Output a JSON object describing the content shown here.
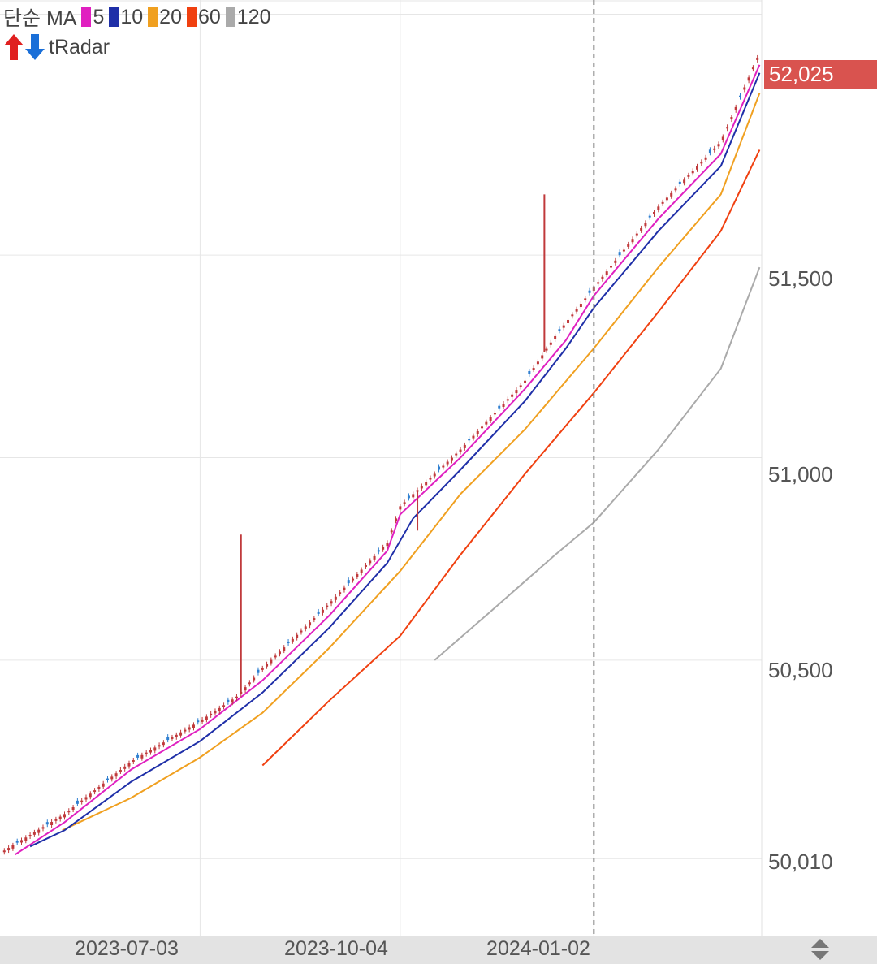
{
  "legend": {
    "label": "단순 MA",
    "items": [
      {
        "period": "5",
        "color": "#e020c0"
      },
      {
        "period": "10",
        "color": "#1f2fa8"
      },
      {
        "period": "20",
        "color": "#f0a020"
      },
      {
        "period": "60",
        "color": "#f04010"
      },
      {
        "period": "120",
        "color": "#aaaaaa"
      }
    ]
  },
  "indicator": {
    "label": "tRadar",
    "up_icon": "red-up-arrow-icon",
    "down_icon": "blue-down-arrow-icon"
  },
  "price_tag": "52,025",
  "y_tick_labels": [
    "51,500",
    "51,000",
    "50,500",
    "50,010"
  ],
  "x_tick_labels": [
    "2023-07-03",
    "2023-10-04",
    "2024-01-02"
  ],
  "colors": {
    "up_candle": "#c0393b",
    "down_candle": "#2f7fd0",
    "price_tag_bg": "#d9534f",
    "grid": "#e6e6e6",
    "crosshair": "#888888"
  },
  "chart_data": {
    "type": "line",
    "x_range": [
      "2023-04-01",
      "2024-03-20"
    ],
    "ylim": [
      49820,
      52130
    ],
    "y_ticks": [
      50010,
      50500,
      51000,
      51500
    ],
    "x_ticks": [
      "2023-07-03",
      "2023-10-04",
      "2024-01-02"
    ],
    "crosshair_date": "2024-01-02",
    "last_price": 52025,
    "candles": {
      "x": [
        "2023-04-03",
        "2023-05-01",
        "2023-06-01",
        "2023-07-03",
        "2023-07-20",
        "2023-08-01",
        "2023-09-01",
        "2023-09-28",
        "2023-10-04",
        "2023-11-01",
        "2023-12-01",
        "2023-12-15",
        "2024-01-02",
        "2024-02-01",
        "2024-03-01",
        "2024-03-19"
      ],
      "close": [
        50030,
        50120,
        50250,
        50350,
        50410,
        50480,
        50640,
        50790,
        50880,
        51020,
        51190,
        51300,
        51420,
        51620,
        51780,
        52000
      ]
    },
    "spikes": [
      {
        "x": "2023-07-22",
        "high": 50810
      },
      {
        "x": "2023-10-12",
        "high": 50820
      },
      {
        "x": "2023-12-10",
        "high": 51650
      }
    ],
    "series": [
      {
        "name": "5",
        "color": "#e020c0",
        "x": [
          "2023-04-08",
          "2023-05-01",
          "2023-06-01",
          "2023-07-03",
          "2023-08-01",
          "2023-09-01",
          "2023-09-28",
          "2023-10-04",
          "2023-11-01",
          "2023-12-01",
          "2023-12-20",
          "2024-01-02",
          "2024-02-01",
          "2024-03-01",
          "2024-03-19"
        ],
        "y": [
          50020,
          50100,
          50230,
          50330,
          50450,
          50610,
          50770,
          50860,
          51000,
          51170,
          51290,
          51400,
          51590,
          51750,
          51970
        ]
      },
      {
        "name": "10",
        "color": "#1f2fa8",
        "x": [
          "2023-04-15",
          "2023-05-01",
          "2023-06-01",
          "2023-07-03",
          "2023-08-01",
          "2023-09-01",
          "2023-09-28",
          "2023-10-10",
          "2023-11-01",
          "2023-12-01",
          "2023-12-20",
          "2024-01-02",
          "2024-02-01",
          "2024-03-01",
          "2024-03-19"
        ],
        "y": [
          50040,
          50080,
          50200,
          50300,
          50420,
          50580,
          50740,
          50850,
          50970,
          51140,
          51270,
          51370,
          51560,
          51720,
          51950
        ]
      },
      {
        "name": "20",
        "color": "#f0a020",
        "x": [
          "2023-04-30",
          "2023-06-01",
          "2023-07-03",
          "2023-08-01",
          "2023-09-01",
          "2023-10-04",
          "2023-11-01",
          "2023-12-01",
          "2024-01-02",
          "2024-02-01",
          "2024-03-01",
          "2024-03-19"
        ],
        "y": [
          50080,
          50160,
          50260,
          50370,
          50530,
          50720,
          50910,
          51070,
          51270,
          51470,
          51650,
          51900
        ]
      },
      {
        "name": "60",
        "color": "#f04010",
        "x": [
          "2023-08-01",
          "2023-09-01",
          "2023-10-04",
          "2023-11-01",
          "2023-12-01",
          "2024-01-02",
          "2024-02-01",
          "2024-03-01",
          "2024-03-19"
        ],
        "y": [
          50240,
          50400,
          50560,
          50760,
          50960,
          51160,
          51360,
          51560,
          51760
        ]
      },
      {
        "name": "120",
        "color": "#aaaaaa",
        "x": [
          "2023-10-20",
          "2023-11-15",
          "2023-12-15",
          "2024-01-02",
          "2024-02-01",
          "2024-03-01",
          "2024-03-19"
        ],
        "y": [
          50500,
          50620,
          50760,
          50840,
          51020,
          51220,
          51470
        ]
      }
    ]
  }
}
